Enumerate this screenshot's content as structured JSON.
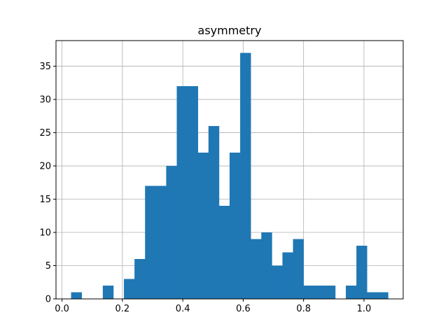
{
  "chart_data": {
    "type": "bar",
    "title": "asymmetry",
    "xlabel": "",
    "ylabel": "",
    "grid": true,
    "legend": "none",
    "bar_color": "#1f77b4",
    "xlim": [
      -0.02,
      1.13
    ],
    "ylim": [
      0,
      38.85
    ],
    "x_ticks": [
      0.0,
      0.2,
      0.4,
      0.6,
      0.8,
      1.0
    ],
    "x_tick_labels": [
      "0.0",
      "0.2",
      "0.4",
      "0.6",
      "0.8",
      "1.0"
    ],
    "y_ticks": [
      0,
      5,
      10,
      15,
      20,
      25,
      30,
      35
    ],
    "y_tick_labels": [
      "0",
      "5",
      "10",
      "15",
      "20",
      "25",
      "30",
      "35"
    ],
    "bin_start": 0.03,
    "bin_width": 0.035,
    "counts": [
      1,
      0,
      0,
      2,
      0,
      3,
      6,
      17,
      17,
      20,
      32,
      32,
      22,
      26,
      14,
      22,
      37,
      9,
      10,
      5,
      7,
      9,
      2,
      2,
      2,
      0,
      2,
      8,
      1,
      1
    ]
  }
}
